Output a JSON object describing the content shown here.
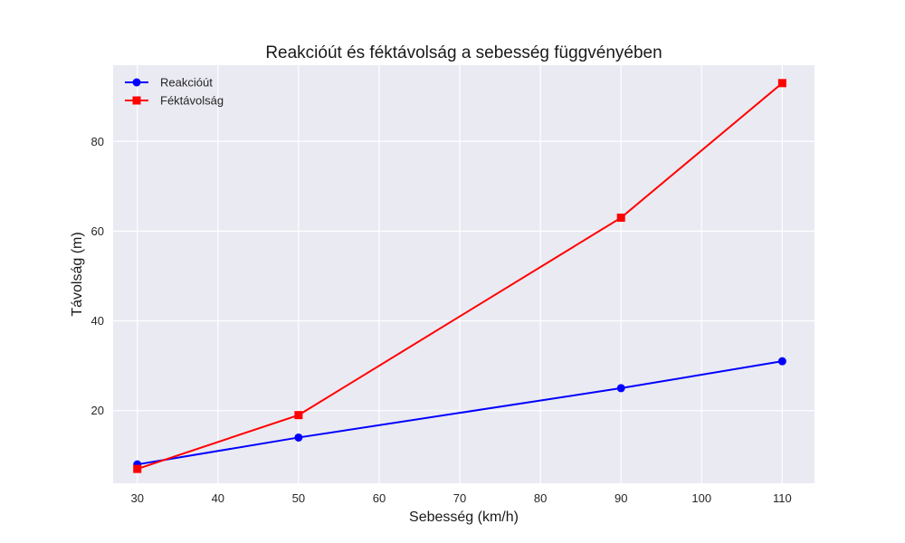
{
  "chart_data": {
    "type": "line",
    "title": "Reakcióút és féktávolság a sebesség függvényében",
    "xlabel": "Sebesség (km/h)",
    "ylabel": "Távolság (m)",
    "x": [
      30,
      50,
      90,
      110
    ],
    "xlim": [
      27,
      114
    ],
    "ylim": [
      3.8,
      97
    ],
    "xticks": [
      30,
      40,
      50,
      60,
      70,
      80,
      90,
      100,
      110
    ],
    "yticks": [
      20,
      40,
      60,
      80
    ],
    "grid": true,
    "legend_position": "top-left",
    "background": "#eaeaf2",
    "series": [
      {
        "name": "Reakcióút",
        "values": [
          8,
          14,
          25,
          31
        ],
        "color": "#0000ff",
        "marker": "circle"
      },
      {
        "name": "Féktávolság",
        "values": [
          7,
          19,
          63,
          93
        ],
        "color": "#ff0000",
        "marker": "square"
      }
    ]
  }
}
